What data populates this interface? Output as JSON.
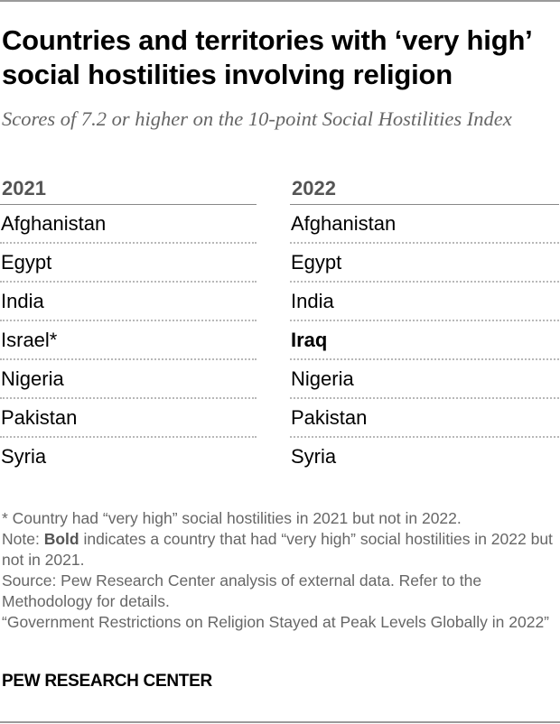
{
  "title": "Countries and territories with ‘very high’ social hostilities involving religion",
  "subtitle": "Scores of 7.2 or higher on the 10-point Social Hostilities Index",
  "columns": [
    {
      "year": "2021",
      "items": [
        {
          "name": "Afghanistan",
          "bold": false
        },
        {
          "name": "Egypt",
          "bold": false
        },
        {
          "name": "India",
          "bold": false
        },
        {
          "name": "Israel*",
          "bold": false
        },
        {
          "name": "Nigeria",
          "bold": false
        },
        {
          "name": "Pakistan",
          "bold": false
        },
        {
          "name": "Syria",
          "bold": false
        }
      ]
    },
    {
      "year": "2022",
      "items": [
        {
          "name": "Afghanistan",
          "bold": false
        },
        {
          "name": "Egypt",
          "bold": false
        },
        {
          "name": "India",
          "bold": false
        },
        {
          "name": "Iraq",
          "bold": true
        },
        {
          "name": "Nigeria",
          "bold": false
        },
        {
          "name": "Pakistan",
          "bold": false
        },
        {
          "name": "Syria",
          "bold": false
        }
      ]
    }
  ],
  "notes": {
    "asterisk": "* Country had “very high” social hostilities in 2021 but not in 2022.",
    "note_prefix": "Note: ",
    "note_bold": "Bold",
    "note_rest": " indicates a country that had “very high” social hostilities in 2022 but not in 2021.",
    "source": "Source: Pew Research Center analysis of external data. Refer to the Methodology for details.",
    "report": "“Government Restrictions on Religion Stayed at Peak Levels Globally in 2022”"
  },
  "brand": "PEW RESEARCH CENTER"
}
